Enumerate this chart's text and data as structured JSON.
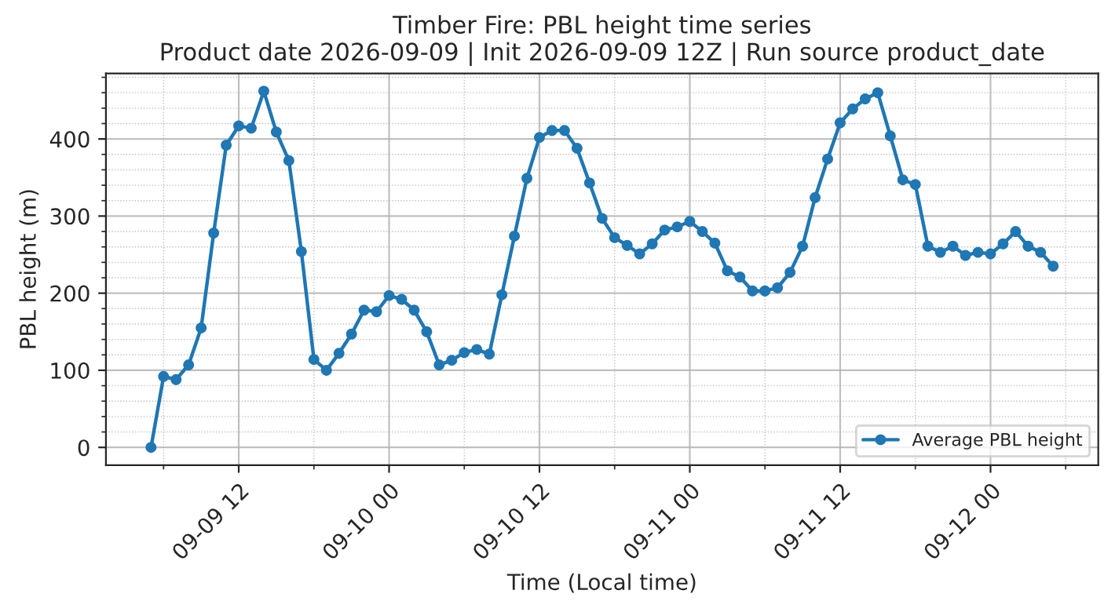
{
  "chart_data": {
    "type": "line",
    "title": "Timber Fire: PBL height time series\nProduct date 2026-09-09 | Init 2026-09-09 12Z | Run source product_date",
    "xlabel": "Time (Local time)",
    "ylabel": "PBL height (m)",
    "x": [
      "2026-09-09T05:00",
      "2026-09-09T06:00",
      "2026-09-09T07:00",
      "2026-09-09T08:00",
      "2026-09-09T09:00",
      "2026-09-09T10:00",
      "2026-09-09T11:00",
      "2026-09-09T12:00",
      "2026-09-09T13:00",
      "2026-09-09T14:00",
      "2026-09-09T15:00",
      "2026-09-09T16:00",
      "2026-09-09T17:00",
      "2026-09-09T18:00",
      "2026-09-09T19:00",
      "2026-09-09T20:00",
      "2026-09-09T21:00",
      "2026-09-09T22:00",
      "2026-09-09T23:00",
      "2026-09-10T00:00",
      "2026-09-10T01:00",
      "2026-09-10T02:00",
      "2026-09-10T03:00",
      "2026-09-10T04:00",
      "2026-09-10T05:00",
      "2026-09-10T06:00",
      "2026-09-10T07:00",
      "2026-09-10T08:00",
      "2026-09-10T09:00",
      "2026-09-10T10:00",
      "2026-09-10T11:00",
      "2026-09-10T12:00",
      "2026-09-10T13:00",
      "2026-09-10T14:00",
      "2026-09-10T15:00",
      "2026-09-10T16:00",
      "2026-09-10T17:00",
      "2026-09-10T18:00",
      "2026-09-10T19:00",
      "2026-09-10T20:00",
      "2026-09-10T21:00",
      "2026-09-10T22:00",
      "2026-09-10T23:00",
      "2026-09-11T00:00",
      "2026-09-11T01:00",
      "2026-09-11T02:00",
      "2026-09-11T03:00",
      "2026-09-11T04:00",
      "2026-09-11T05:00",
      "2026-09-11T06:00",
      "2026-09-11T07:00",
      "2026-09-11T08:00",
      "2026-09-11T09:00",
      "2026-09-11T10:00",
      "2026-09-11T11:00",
      "2026-09-11T12:00",
      "2026-09-11T13:00",
      "2026-09-11T14:00",
      "2026-09-11T15:00",
      "2026-09-11T16:00",
      "2026-09-11T17:00",
      "2026-09-11T18:00",
      "2026-09-11T19:00",
      "2026-09-11T20:00",
      "2026-09-11T21:00",
      "2026-09-11T22:00",
      "2026-09-11T23:00",
      "2026-09-12T00:00",
      "2026-09-12T01:00",
      "2026-09-12T02:00",
      "2026-09-12T03:00",
      "2026-09-12T04:00",
      "2026-09-12T05:00"
    ],
    "series": [
      {
        "name": "Average PBL height",
        "color": "#1f77b4",
        "values": [
          0,
          92,
          88,
          107,
          155,
          278,
          392,
          417,
          414,
          462,
          409,
          372,
          254,
          114,
          100,
          122,
          147,
          178,
          176,
          197,
          192,
          178,
          150,
          107,
          113,
          123,
          127,
          121,
          198,
          274,
          349,
          402,
          411,
          411,
          388,
          343,
          297,
          272,
          262,
          251,
          264,
          282,
          286,
          293,
          280,
          265,
          229,
          221,
          203,
          203,
          207,
          227,
          261,
          324,
          374,
          421,
          439,
          452,
          460,
          404,
          347,
          341,
          261,
          253,
          261,
          249,
          253,
          251,
          264,
          280,
          261,
          253,
          235
        ]
      }
    ],
    "xlim": [
      "2026-09-09T01:24",
      "2026-09-12T08:36"
    ],
    "xticks": [
      {
        "value": "2026-09-09T06:00",
        "label": null
      },
      {
        "value": "2026-09-09T12:00",
        "label": "09-09 12"
      },
      {
        "value": "2026-09-09T18:00",
        "label": null
      },
      {
        "value": "2026-09-10T00:00",
        "label": "09-10 00"
      },
      {
        "value": "2026-09-10T06:00",
        "label": null
      },
      {
        "value": "2026-09-10T12:00",
        "label": "09-10 12"
      },
      {
        "value": "2026-09-10T18:00",
        "label": null
      },
      {
        "value": "2026-09-11T00:00",
        "label": "09-11 00"
      },
      {
        "value": "2026-09-11T06:00",
        "label": null
      },
      {
        "value": "2026-09-11T12:00",
        "label": "09-11 12"
      },
      {
        "value": "2026-09-11T18:00",
        "label": null
      },
      {
        "value": "2026-09-12T00:00",
        "label": "09-12 00"
      },
      {
        "value": "2026-09-12T06:00",
        "label": null
      }
    ],
    "ylim": [
      -23,
      485
    ],
    "yticks": [
      0,
      100,
      200,
      300,
      400,
      {
        "value": 20,
        "label": null
      },
      {
        "value": 40,
        "label": null
      },
      {
        "value": 60,
        "label": null
      },
      {
        "value": 80,
        "label": null
      },
      {
        "value": 120,
        "label": null
      },
      {
        "value": 140,
        "label": null
      },
      {
        "value": 160,
        "label": null
      },
      {
        "value": 180,
        "label": null
      },
      {
        "value": 220,
        "label": null
      },
      {
        "value": 240,
        "label": null
      },
      {
        "value": 260,
        "label": null
      },
      {
        "value": 280,
        "label": null
      },
      {
        "value": 320,
        "label": null
      },
      {
        "value": 340,
        "label": null
      },
      {
        "value": 360,
        "label": null
      },
      {
        "value": 380,
        "label": null
      },
      {
        "value": 420,
        "label": null
      },
      {
        "value": 440,
        "label": null
      },
      {
        "value": 460,
        "label": null
      },
      {
        "value": 480,
        "label": null
      }
    ],
    "grid": true,
    "legend": "lower right",
    "marker": "circle",
    "line_style": "solid"
  }
}
